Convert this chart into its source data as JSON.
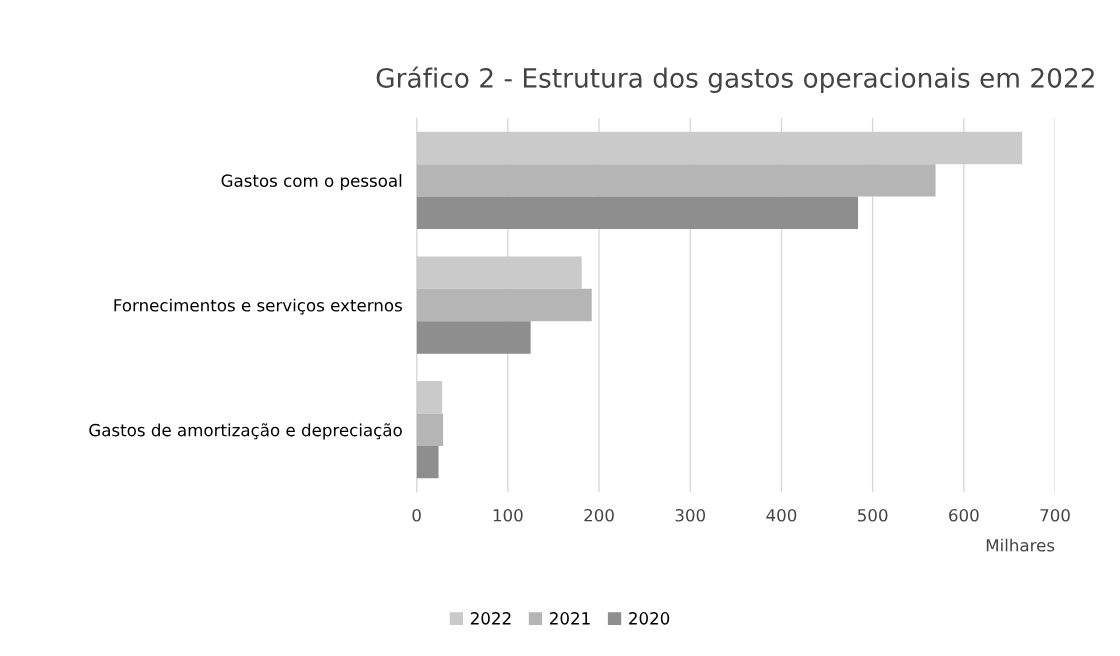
{
  "chart_data": {
    "type": "bar",
    "orientation": "horizontal",
    "title": "Gráfico 2 - Estrutura dos gastos operacionais em 2022",
    "xlabel": "Milhares",
    "categories": [
      "Gastos com o pessoal",
      "Fornecimentos e serviços externos",
      "Gastos de amortização e depreciação"
    ],
    "series": [
      {
        "name": "2022",
        "color": "#cacaca",
        "values": [
          664,
          181,
          28
        ]
      },
      {
        "name": "2021",
        "color": "#b5b5b5",
        "values": [
          569,
          192,
          29
        ]
      },
      {
        "name": "2020",
        "color": "#8e8e8e",
        "values": [
          484,
          125,
          24
        ]
      }
    ],
    "xlim": [
      0,
      700
    ],
    "xticks": [
      0,
      100,
      200,
      300,
      400,
      500,
      600,
      700
    ],
    "grid": "x",
    "legend": "bottom"
  }
}
